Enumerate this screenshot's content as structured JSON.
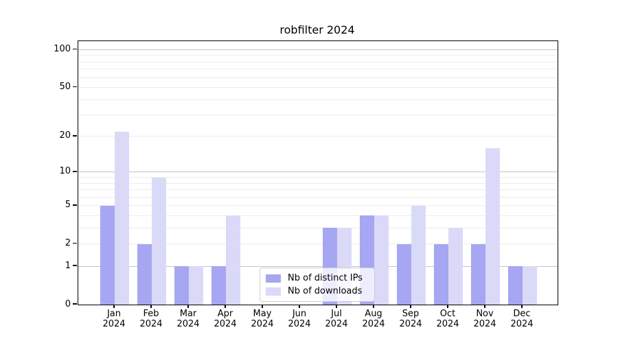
{
  "title": "robfilter 2024",
  "legend": {
    "items": [
      {
        "label": "Nb of distinct IPs",
        "color": "#a6a6f2"
      },
      {
        "label": "Nb of downloads",
        "color": "#dadaf8"
      }
    ]
  },
  "chart_data": {
    "type": "bar",
    "title": "robfilter 2024",
    "categories": [
      "Jan",
      "Feb",
      "Mar",
      "Apr",
      "May",
      "Jun",
      "Jul",
      "Aug",
      "Sep",
      "Oct",
      "Nov",
      "Dec"
    ],
    "year": "2024",
    "series": [
      {
        "name": "Nb of distinct IPs",
        "color": "#a6a6f2",
        "values": [
          5,
          2,
          1,
          1,
          0,
          0,
          3,
          4,
          2,
          2,
          2,
          1
        ]
      },
      {
        "name": "Nb of downloads",
        "color": "#dadaf8",
        "values": [
          22,
          9,
          1,
          4,
          0,
          0,
          3,
          4,
          5,
          3,
          16,
          1
        ]
      }
    ],
    "xlabel": "",
    "ylabel": "",
    "yscale": "log1p",
    "ylim": [
      0,
      100
    ],
    "y_ticks": [
      0,
      1,
      2,
      5,
      10,
      20,
      50,
      100
    ],
    "y_tick_labels": [
      "0",
      "1",
      "2",
      "5",
      "10",
      "20",
      "50",
      "100"
    ],
    "y_major_gridlines": [
      1,
      10,
      100
    ],
    "y_minor_gridlines": [
      2,
      3,
      4,
      5,
      6,
      7,
      8,
      9,
      20,
      30,
      40,
      50,
      60,
      70,
      80,
      90
    ],
    "grid": true,
    "legend_position": "lower center"
  },
  "colors": {
    "bar_distinct_ips": "#a6a6f2",
    "bar_downloads": "#dadaf8",
    "grid_major": "#c3c3c3",
    "grid_minor": "#ececec",
    "axis": "#000000",
    "background": "#ffffff"
  }
}
